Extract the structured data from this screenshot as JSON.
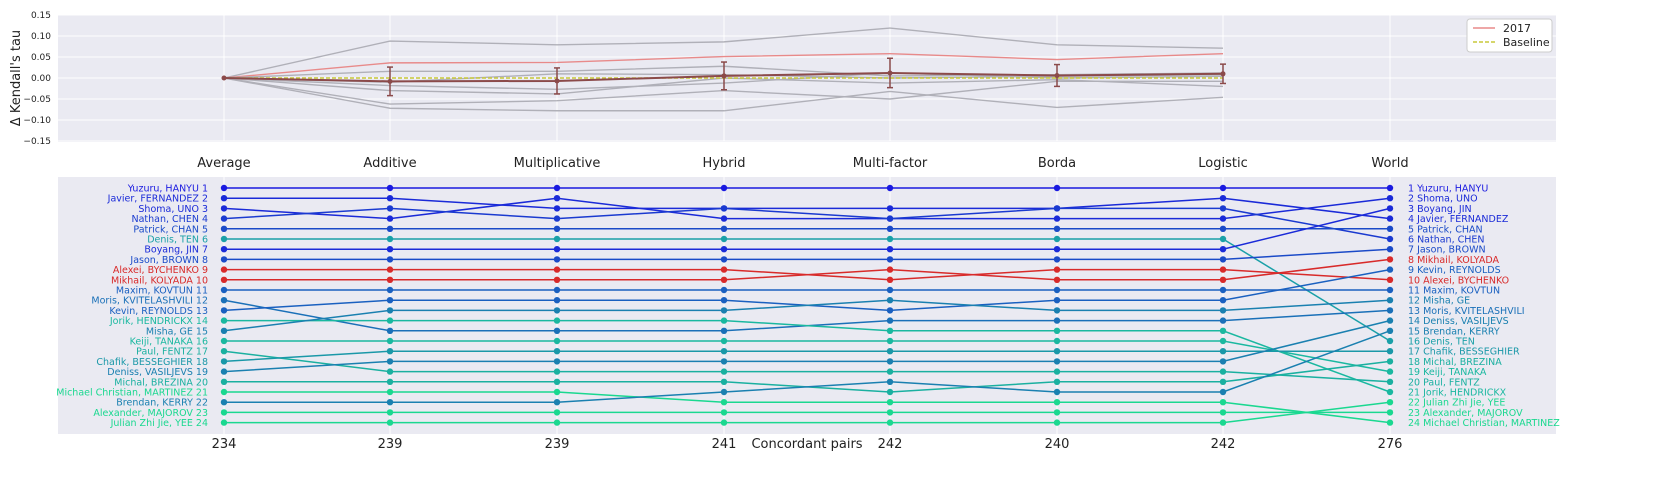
{
  "chart_data": [
    {
      "type": "line",
      "ylabel": "Δ Kendall's tau",
      "ylim": [
        -0.15,
        0.15
      ],
      "y_ticks": [
        "0.15",
        "0.10",
        "0.05",
        "0.00",
        "−0.05",
        "−0.10",
        "−0.15"
      ],
      "y_tick_values": [
        0.15,
        0.1,
        0.05,
        0.0,
        -0.05,
        -0.1,
        -0.15
      ],
      "grid": true,
      "legend": {
        "placement": "top-right",
        "entries": [
          {
            "label": "2017",
            "color": "#e88a8a",
            "style": "solid"
          },
          {
            "label": "Baseline",
            "color": "#c9c93a",
            "style": "dashed"
          }
        ]
      },
      "methods": [
        "Average",
        "Additive",
        "Multiplicative",
        "Hybrid",
        "Multi-factor",
        "Borda",
        "Logistic"
      ],
      "series": [
        {
          "values": [
            0,
            0.088,
            0.079,
            0.086,
            0.119,
            0.079,
            0.071
          ],
          "color": "#b0b0b8"
        },
        {
          "values": [
            0,
            0.036,
            0.037,
            0.051,
            0.058,
            0.044,
            0.058
          ],
          "color": "#e88a8a"
        },
        {
          "values": [
            0,
            0.016,
            0.016,
            0.028,
            0.005,
            0.008,
            0.012
          ],
          "color": "#b0b0b8"
        },
        {
          "values": [
            0,
            -0.01,
            0.01,
            0.008,
            0.0,
            0.004,
            0.008
          ],
          "color": "#b0b0b8"
        },
        {
          "values": [
            0,
            -0.018,
            -0.027,
            -0.012,
            0.012,
            0.0,
            0.004
          ],
          "color": "#b0b0b8"
        },
        {
          "values": [
            0,
            -0.03,
            -0.038,
            0.0,
            -0.012,
            -0.004,
            -0.02
          ],
          "color": "#b0b0b8"
        },
        {
          "values": [
            0,
            -0.062,
            -0.054,
            -0.03,
            -0.05,
            -0.008,
            -0.008
          ],
          "color": "#b0b0b8"
        },
        {
          "values": [
            0,
            -0.072,
            -0.078,
            -0.078,
            -0.032,
            -0.07,
            -0.046
          ],
          "color": "#b0b0b8"
        },
        {
          "values": [
            0,
            0,
            0,
            0,
            0,
            0,
            0
          ],
          "color": "#c9c93a",
          "dashed": true
        }
      ],
      "mean": {
        "values": [
          0,
          -0.008,
          -0.007,
          0.005,
          0.012,
          0.006,
          0.01
        ],
        "errors": [
          0,
          0.034,
          0.031,
          0.033,
          0.035,
          0.026,
          0.023
        ],
        "color": "#8b4a4a"
      }
    },
    {
      "type": "bump",
      "xlabel": "Concordant pairs",
      "columns": [
        "Average",
        "Additive",
        "Multiplicative",
        "Hybrid",
        "Multi-factor",
        "Borda",
        "Logistic",
        "World"
      ],
      "concordant_pairs": [
        "234",
        "239",
        "239",
        "241",
        "242",
        "240",
        "242",
        "276"
      ],
      "left_labels": [
        "Yuzuru, HANYU 1",
        "Javier, FERNANDEZ 2",
        "Shoma, UNO 3",
        "Nathan, CHEN 4",
        "Patrick, CHAN 5",
        "Denis, TEN 6",
        "Boyang, JIN 7",
        "Jason, BROWN 8",
        "Alexei, BYCHENKO 9",
        "Mikhail, KOLYADA 10",
        "Maxim, KOVTUN 11",
        "Moris, KVITELASHVILI 12",
        "Kevin, REYNOLDS 13",
        "Jorik, HENDRICKX 14",
        "Misha, GE 15",
        "Keiji, TANAKA 16",
        "Paul, FENTZ 17",
        "Chafik, BESSEGHIER 18",
        "Deniss, VASILJEVS 19",
        "Michal, BREZINA 20",
        "Michael Christian, MARTINEZ 21",
        "Brendan, KERRY 22",
        "Alexander, MAJOROV 23",
        "Julian Zhi Jie, YEE 24"
      ],
      "right_labels": [
        "1 Yuzuru, HANYU",
        "2 Shoma, UNO",
        "3 Boyang, JIN",
        "4 Javier, FERNANDEZ",
        "5 Patrick, CHAN",
        "6 Nathan, CHEN",
        "7 Jason, BROWN",
        "8 Mikhail, KOLYADA",
        "9 Kevin, REYNOLDS",
        "10 Alexei, BYCHENKO",
        "11 Maxim, KOVTUN",
        "12 Misha, GE",
        "13 Moris, KVITELASHVILI",
        "14 Deniss, VASILJEVS",
        "15 Brendan, KERRY",
        "16 Denis, TEN",
        "17 Chafik, BESSEGHIER",
        "18 Michal, BREZINA",
        "19 Keiji, TANAKA",
        "20 Paul, FENTZ",
        "21 Jorik, HENDRICKX",
        "22 Julian Zhi Jie, YEE",
        "23 Alexander, MAJOROV",
        "24 Michael Christian, MARTINEZ"
      ],
      "skaters": [
        {
          "ranks": [
            1,
            1,
            1,
            1,
            1,
            1,
            1,
            1
          ],
          "color": "#1a1ae0"
        },
        {
          "ranks": [
            2,
            2,
            3,
            3,
            3,
            3,
            2,
            4
          ],
          "color": "#1a2ad8"
        },
        {
          "ranks": [
            3,
            4,
            2,
            4,
            4,
            4,
            4,
            2
          ],
          "color": "#1a2ad8"
        },
        {
          "ranks": [
            4,
            3,
            4,
            3,
            4,
            3,
            3,
            6
          ],
          "color": "#1a3ad0"
        },
        {
          "ranks": [
            5,
            5,
            5,
            5,
            5,
            5,
            5,
            5
          ],
          "color": "#1a4ac8"
        },
        {
          "ranks": [
            6,
            6,
            6,
            6,
            6,
            6,
            6,
            16
          ],
          "color": "#1aa0a8"
        },
        {
          "ranks": [
            7,
            7,
            7,
            7,
            7,
            7,
            7,
            3
          ],
          "color": "#1a2ad8"
        },
        {
          "ranks": [
            8,
            8,
            8,
            8,
            8,
            8,
            8,
            7
          ],
          "color": "#1a4ac8"
        },
        {
          "ranks": [
            9,
            9,
            9,
            9,
            10,
            9,
            9,
            10
          ],
          "color": "#d82a2a"
        },
        {
          "ranks": [
            10,
            10,
            10,
            10,
            9,
            10,
            10,
            8
          ],
          "color": "#d82a2a"
        },
        {
          "ranks": [
            11,
            11,
            11,
            11,
            11,
            11,
            11,
            11
          ],
          "color": "#1a60c0"
        },
        {
          "ranks": [
            12,
            15,
            15,
            15,
            14,
            14,
            14,
            13
          ],
          "color": "#1a70b8"
        },
        {
          "ranks": [
            13,
            12,
            12,
            12,
            13,
            12,
            12,
            9
          ],
          "color": "#1a60c0"
        },
        {
          "ranks": [
            14,
            14,
            14,
            14,
            15,
            15,
            15,
            21
          ],
          "color": "#1ab8a0"
        },
        {
          "ranks": [
            15,
            13,
            13,
            13,
            12,
            13,
            13,
            12
          ],
          "color": "#1a80b0"
        },
        {
          "ranks": [
            16,
            16,
            16,
            16,
            16,
            16,
            16,
            19
          ],
          "color": "#1ab8a0"
        },
        {
          "ranks": [
            17,
            19,
            19,
            19,
            19,
            19,
            19,
            20
          ],
          "color": "#1ab0a0"
        },
        {
          "ranks": [
            18,
            17,
            17,
            17,
            17,
            17,
            17,
            17
          ],
          "color": "#1a98a8"
        },
        {
          "ranks": [
            19,
            18,
            18,
            18,
            18,
            18,
            18,
            14
          ],
          "color": "#1a80b0"
        },
        {
          "ranks": [
            20,
            20,
            20,
            20,
            21,
            20,
            20,
            18
          ],
          "color": "#1ab0a0"
        },
        {
          "ranks": [
            21,
            21,
            21,
            22,
            22,
            22,
            22,
            24
          ],
          "color": "#1ad890"
        },
        {
          "ranks": [
            22,
            22,
            22,
            21,
            20,
            21,
            21,
            15
          ],
          "color": "#1a80b0"
        },
        {
          "ranks": [
            23,
            23,
            23,
            23,
            23,
            23,
            23,
            23
          ],
          "color": "#1ad890"
        },
        {
          "ranks": [
            24,
            24,
            24,
            24,
            24,
            24,
            24,
            22
          ],
          "color": "#1ad890"
        }
      ]
    }
  ]
}
